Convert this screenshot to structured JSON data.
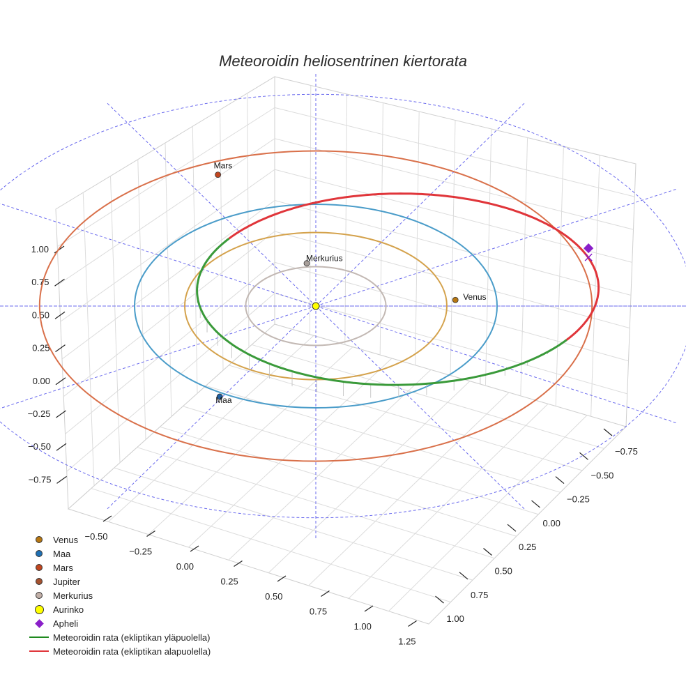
{
  "chart_data": {
    "type": "scatter3d",
    "title": "Meteoroidin heliosentrinen kiertorata",
    "axes": {
      "x_ticks": [
        "−0.50",
        "−0.25",
        "0.00",
        "0.25",
        "0.50",
        "0.75",
        "1.00",
        "1.25"
      ],
      "y_ticks": [
        "−0.75",
        "−0.50",
        "−0.25",
        "0.00",
        "0.25",
        "0.50",
        "0.75",
        "1.00"
      ],
      "z_ticks": [
        "1.00",
        "0.75",
        "0.50",
        "0.25",
        "0.00",
        "−0.25",
        "−0.50",
        "−0.75"
      ]
    },
    "orbits": [
      {
        "name": "Merkurius",
        "a": 0.387,
        "color": "#c2b8b3"
      },
      {
        "name": "Venus",
        "a": 0.723,
        "color": "#d4a24c"
      },
      {
        "name": "Maa",
        "a": 1.0,
        "color": "#4a9cc9"
      },
      {
        "name": "Mars",
        "a": 1.524,
        "color": "#d9704a"
      }
    ],
    "planet_labels": [
      {
        "name": "Mars",
        "color": "#c1461f"
      },
      {
        "name": "Merkurius",
        "color": "#a89f9a"
      },
      {
        "name": "Venus",
        "color": "#b77712"
      },
      {
        "name": "Maa",
        "color": "#1f5fa0"
      }
    ],
    "meteoroid": {
      "a": 1.12,
      "e": 0.43,
      "above_color": "#3a9a3a",
      "below_color": "#e0353a"
    },
    "sun_color": "#ffff00",
    "aphelion_color": "#8a1fc9",
    "grid_color": "#6a6aee",
    "legend": [
      {
        "label": "Venus",
        "kind": "dot",
        "color": "#b77712"
      },
      {
        "label": "Maa",
        "kind": "dot",
        "color": "#1f70b4"
      },
      {
        "label": "Mars",
        "kind": "dot",
        "color": "#c1461f"
      },
      {
        "label": "Jupiter",
        "kind": "dot",
        "color": "#a5522f"
      },
      {
        "label": "Merkurius",
        "kind": "dot",
        "color": "#c2b0a8"
      },
      {
        "label": "Aurinko",
        "kind": "big",
        "color": "#ffff00"
      },
      {
        "label": "Apheli",
        "kind": "diamond",
        "color": "#8a1fc9"
      },
      {
        "label": "Meteoroidin rata (ekliptikan yläpuolella)",
        "kind": "line",
        "color": "#1f8a1f"
      },
      {
        "label": "Meteoroidin rata (ekliptikan alapuolella)",
        "kind": "line",
        "color": "#e0353a"
      }
    ]
  }
}
